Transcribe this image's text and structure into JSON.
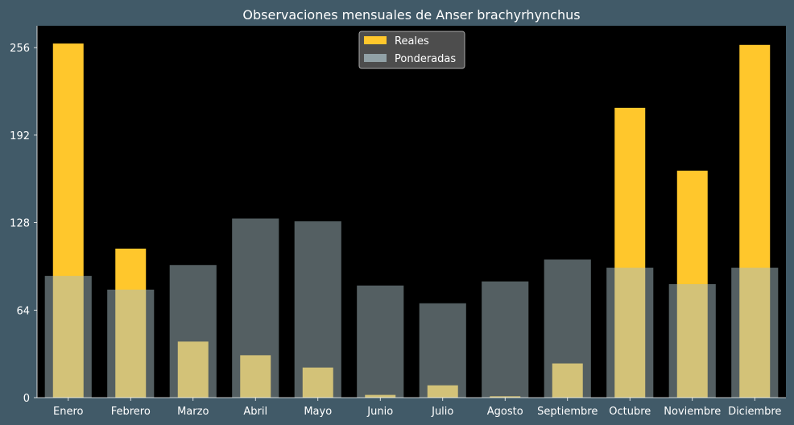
{
  "chart_data": {
    "type": "bar",
    "title": "Observaciones mensuales de Anser brachyrhynchus",
    "xlabel": "",
    "ylabel": "",
    "categories": [
      "Enero",
      "Febrero",
      "Marzo",
      "Abril",
      "Mayo",
      "Junio",
      "Julio",
      "Agosto",
      "Septiembre",
      "Octubre",
      "Noviembre",
      "Diciembre"
    ],
    "series": [
      {
        "name": "Reales",
        "color": "#ffc72c",
        "values": [
          259,
          109,
          41,
          31,
          22,
          2,
          9,
          1,
          25,
          212,
          166,
          258
        ]
      },
      {
        "name": "Ponderadas",
        "color": "#a8bdc4",
        "values": [
          89,
          79,
          97,
          131,
          129,
          82,
          69,
          85,
          101,
          95,
          83,
          95
        ]
      }
    ],
    "ylim": [
      0,
      272
    ],
    "yticks": [
      0,
      64,
      128,
      192,
      256
    ],
    "legend": "top-center",
    "grid": false,
    "colors": {
      "page_background": "#415a68",
      "plot_background": "#000000",
      "text": "#ffffff",
      "legend_background": "#555555"
    }
  }
}
